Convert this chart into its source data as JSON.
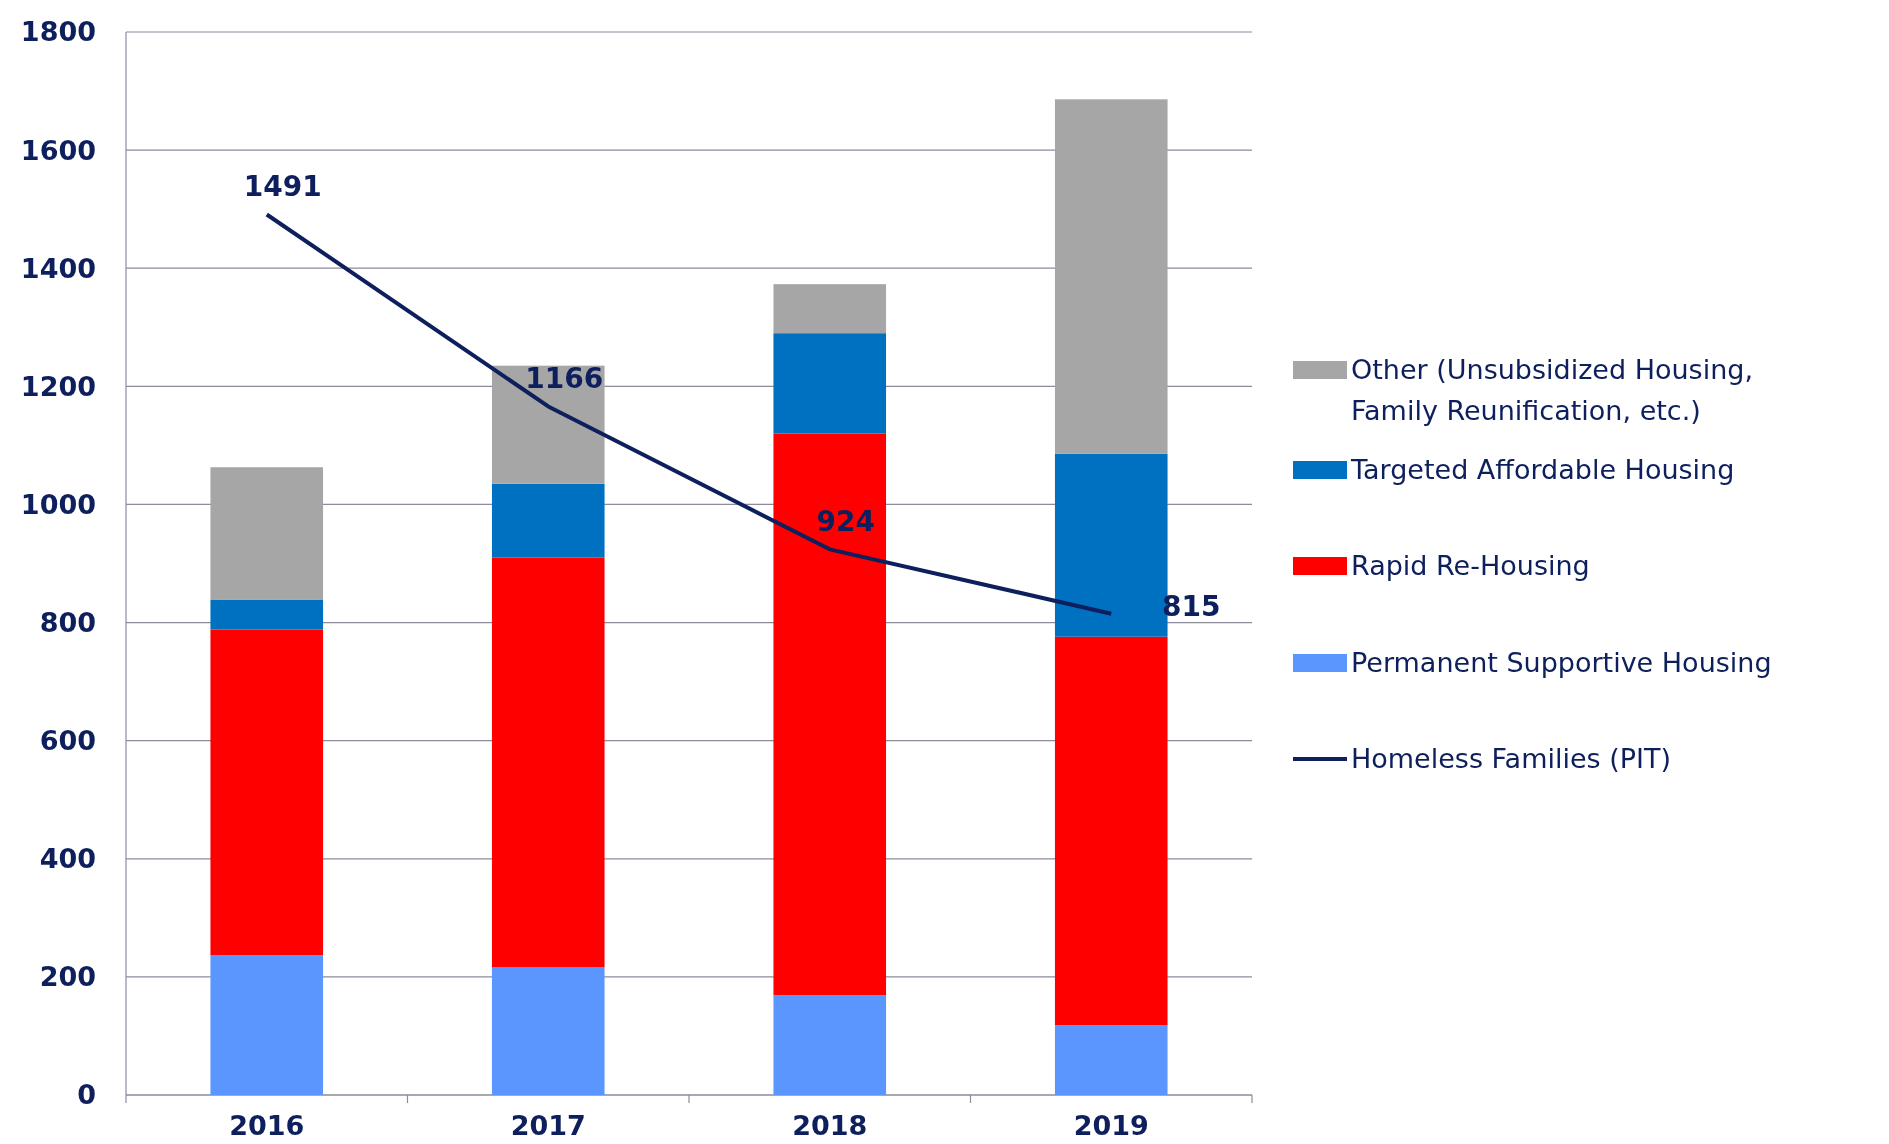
{
  "chart_data": {
    "type": "bar",
    "stacked": true,
    "categories": [
      "2016",
      "2017",
      "2018",
      "2019"
    ],
    "series": [
      {
        "name": "Permanent Supportive Housing",
        "color": "#5b96ff",
        "values": [
          237,
          216,
          169,
          118
        ]
      },
      {
        "name": "Rapid Re-Housing",
        "color": "#ff0000",
        "values": [
          551,
          694,
          951,
          658
        ]
      },
      {
        "name": "Targeted Affordable Housing",
        "color": "#0070c0",
        "values": [
          51,
          125,
          170,
          310
        ]
      },
      {
        "name": "Other (Unsubsidized Housing, Family Reunification, etc.)",
        "color": "#a6a6a6",
        "values": [
          224,
          200,
          83,
          600
        ]
      },
      {
        "name": "Homeless Families (PIT)",
        "type": "line",
        "color": "#0d1f5c",
        "values": [
          1491,
          1166,
          924,
          815
        ],
        "value_labels": [
          "1491",
          "1166",
          "924",
          "815"
        ]
      }
    ],
    "ylim": [
      0,
      1800
    ],
    "yticks": [
      0,
      200,
      400,
      600,
      800,
      1000,
      1200,
      1400,
      1600,
      1800
    ],
    "grid": "y",
    "legend": "right",
    "marker": "none"
  }
}
